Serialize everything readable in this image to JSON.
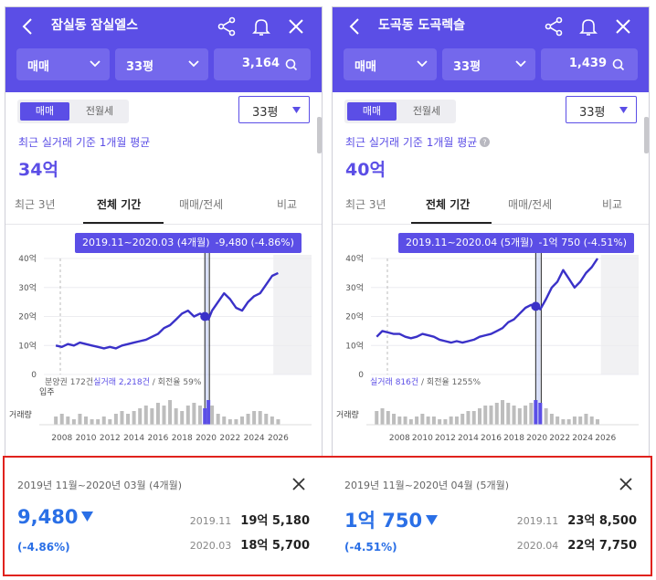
{
  "colors": {
    "accent": "#5b4ee6",
    "header_select": "#7468ec",
    "drop": "#2a6fe6",
    "line": "#3a31c8",
    "highlight_border": "#e0221d"
  },
  "icons": [
    "back-icon",
    "share-icon",
    "bell-icon",
    "close-icon",
    "chevron-down-icon",
    "search-icon",
    "question-icon",
    "down-triangle-icon"
  ],
  "panels": [
    {
      "title": "잠실동 잠실엘스",
      "trade_select": "매매",
      "area_select": "33평",
      "count": "3,164",
      "toggle": {
        "on": "매매",
        "off": "전월세"
      },
      "area_dropdown": "33평",
      "recent_label": "최근 실거래 기준 1개월 평균",
      "show_question_icon": false,
      "avg_price": "34억",
      "tabs": [
        "최근 3년",
        "전체 기간",
        "매매/전세",
        "비교"
      ],
      "active_tab": 1,
      "tooltip": {
        "period": "2019.11~2020.03 (4개월)",
        "value": "-9,480 (-4.86%)"
      },
      "stats": {
        "pre": "분양권 172건",
        "blue": "실거래 2,218건",
        "post": " / 회전율 59%"
      },
      "move_in_label": "입주",
      "volume_label": "거래량",
      "chart_data": {
        "type": "line",
        "x_ticks": [
          "2008",
          "2010",
          "2012",
          "2014",
          "2016",
          "2018",
          "2020",
          "2022",
          "2024",
          "2026"
        ],
        "y_ticks": [
          "0",
          "10억",
          "20억",
          "30억",
          "40억"
        ],
        "ylim": [
          0,
          40
        ],
        "xlim": [
          2006.5,
          2026.5
        ],
        "x": [
          2007.5,
          2008,
          2008.5,
          2009,
          2009.5,
          2010,
          2010.5,
          2011,
          2011.5,
          2012,
          2012.5,
          2013,
          2013.5,
          2014,
          2014.5,
          2015,
          2015.5,
          2016,
          2016.5,
          2017,
          2017.5,
          2018,
          2018.5,
          2019,
          2019.5,
          2019.9,
          2020.2,
          2020.5,
          2021,
          2021.5,
          2022,
          2022.5,
          2023,
          2023.5,
          2024,
          2024.5,
          2025,
          2025.5,
          2026
        ],
        "values": [
          10,
          9.5,
          10.5,
          10,
          11,
          10.5,
          10,
          9.5,
          9,
          9.5,
          9,
          10,
          10.5,
          11,
          11.5,
          12,
          13,
          14,
          16,
          17,
          19,
          21,
          22,
          20,
          21,
          20,
          19,
          22,
          25,
          28,
          26,
          23,
          22,
          25,
          27,
          28,
          31,
          34,
          35
        ],
        "volume": [
          3,
          4,
          3,
          2,
          4,
          3,
          2,
          2,
          3,
          2,
          4,
          5,
          4,
          5,
          6,
          7,
          6,
          8,
          7,
          9,
          6,
          5,
          7,
          8,
          7,
          6,
          9,
          7,
          4,
          3,
          2,
          2,
          3,
          4,
          5,
          5,
          4,
          3,
          2
        ],
        "marker": {
          "x": 2019.9,
          "y": 20
        },
        "band": [
          2019.9,
          2020.2
        ],
        "xlabel": "",
        "ylabel": "",
        "title": ""
      },
      "card": {
        "period": "2019년 11월~2020년 03월 (4개월)",
        "change": "9,480",
        "pct": "(-4.86%)",
        "row1": {
          "date": "2019.11",
          "price": "19억 5,180"
        },
        "row2": {
          "date": "2020.03",
          "price": "18억 5,700"
        }
      }
    },
    {
      "title": "도곡동 도곡렉슬",
      "trade_select": "매매",
      "area_select": "33평",
      "count": "1,439",
      "toggle": {
        "on": "매매",
        "off": "전월세"
      },
      "area_dropdown": "33평",
      "recent_label": "최근 실거래 기준 1개월 평균",
      "show_question_icon": true,
      "avg_price": "40억",
      "tabs": [
        "최근 3년",
        "전체 기간",
        "매매/전세",
        "비교"
      ],
      "active_tab": 1,
      "tooltip": {
        "period": "2019.11~2020.04 (5개월)",
        "value": "-1억 750 (-4.51%)"
      },
      "stats": {
        "pre": "",
        "blue": "실거래 816건",
        "post": " / 회전율 1255%"
      },
      "move_in_label": "",
      "volume_label": "거래량",
      "chart_data": {
        "type": "line",
        "x_ticks": [
          "2008",
          "2010",
          "2012",
          "2014",
          "2016",
          "2018",
          "2020",
          "2022",
          "2024",
          "2026"
        ],
        "y_ticks": [
          "0",
          "10억",
          "20억",
          "30억",
          "40억"
        ],
        "ylim": [
          0,
          40
        ],
        "xlim": [
          2005.5,
          2026.5
        ],
        "x": [
          2006,
          2006.5,
          2007,
          2007.5,
          2008,
          2008.5,
          2009,
          2009.5,
          2010,
          2010.5,
          2011,
          2011.5,
          2012,
          2012.5,
          2013,
          2013.5,
          2014,
          2014.5,
          2015,
          2015.5,
          2016,
          2016.5,
          2017,
          2017.5,
          2018,
          2018.5,
          2019,
          2019.5,
          2019.9,
          2020.3,
          2020.8,
          2021.3,
          2021.8,
          2022.3,
          2022.8,
          2023.3,
          2023.8,
          2024.3,
          2024.8,
          2025.3
        ],
        "values": [
          13,
          15,
          14.5,
          14,
          14,
          13,
          12.5,
          13,
          14,
          13.5,
          13,
          12,
          11.5,
          11,
          11.5,
          11,
          11.5,
          12,
          13,
          13.5,
          14,
          15,
          16,
          18,
          19,
          21,
          23,
          24,
          23.5,
          22.5,
          26,
          30,
          32,
          36,
          33,
          30,
          32,
          35,
          37,
          40
        ],
        "volume": [
          5,
          6,
          5,
          4,
          3,
          3,
          2,
          3,
          4,
          3,
          3,
          2,
          2,
          3,
          3,
          4,
          5,
          5,
          6,
          7,
          7,
          8,
          9,
          8,
          7,
          6,
          7,
          8,
          9,
          8,
          6,
          4,
          3,
          2,
          2,
          3,
          3,
          4,
          3,
          2
        ],
        "marker": {
          "x": 2019.9,
          "y": 23.5
        },
        "band": [
          2019.9,
          2020.3
        ],
        "xlabel": "",
        "ylabel": "",
        "title": ""
      },
      "card": {
        "period": "2019년 11월~2020년 04월 (5개월)",
        "change": "1억 750",
        "pct": "(-4.51%)",
        "row1": {
          "date": "2019.11",
          "price": "23억 8,500"
        },
        "row2": {
          "date": "2020.04",
          "price": "22억 7,750"
        }
      }
    }
  ]
}
